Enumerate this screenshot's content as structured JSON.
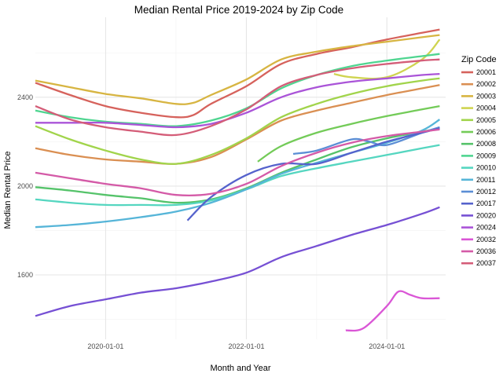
{
  "chart_data": {
    "type": "line",
    "title": "Median Rental Price 2019-2024 by Zip Code",
    "xlabel": "Month and Year",
    "ylabel": "Median Rental Price",
    "x_ticks": [
      "2020-01-01",
      "2022-01-01",
      "2024-01-01"
    ],
    "y_ticks": [
      1600,
      2000,
      2400
    ],
    "xlim": [
      "2019-01-01",
      "2024-11-01"
    ],
    "ylim": [
      1310,
      2760
    ],
    "grid": true,
    "legend_title": "Zip Code",
    "legend_position": "right",
    "series": [
      {
        "name": "20001",
        "color": "#D6625C",
        "points": [
          [
            "2019-01-01",
            2465
          ],
          [
            "2019-07-01",
            2410
          ],
          [
            "2020-01-01",
            2360
          ],
          [
            "2020-07-01",
            2330
          ],
          [
            "2021-01-01",
            2310
          ],
          [
            "2021-04-01",
            2320
          ],
          [
            "2021-07-01",
            2370
          ],
          [
            "2022-01-01",
            2450
          ],
          [
            "2022-07-01",
            2550
          ],
          [
            "2023-01-01",
            2595
          ],
          [
            "2023-07-01",
            2625
          ],
          [
            "2024-01-01",
            2660
          ],
          [
            "2024-07-01",
            2690
          ],
          [
            "2024-10-01",
            2705
          ]
        ]
      },
      {
        "name": "20002",
        "color": "#DA8F52",
        "points": [
          [
            "2019-01-01",
            2170
          ],
          [
            "2019-07-01",
            2140
          ],
          [
            "2020-01-01",
            2120
          ],
          [
            "2020-07-01",
            2110
          ],
          [
            "2021-01-01",
            2100
          ],
          [
            "2021-07-01",
            2130
          ],
          [
            "2022-01-01",
            2210
          ],
          [
            "2022-07-01",
            2295
          ],
          [
            "2023-01-01",
            2340
          ],
          [
            "2023-07-01",
            2375
          ],
          [
            "2024-01-01",
            2410
          ],
          [
            "2024-07-01",
            2440
          ],
          [
            "2024-10-01",
            2455
          ]
        ]
      },
      {
        "name": "20003",
        "color": "#D7B542",
        "points": [
          [
            "2019-01-01",
            2475
          ],
          [
            "2019-07-01",
            2445
          ],
          [
            "2020-01-01",
            2415
          ],
          [
            "2020-07-01",
            2395
          ],
          [
            "2021-01-01",
            2370
          ],
          [
            "2021-04-01",
            2375
          ],
          [
            "2021-07-01",
            2410
          ],
          [
            "2022-01-01",
            2480
          ],
          [
            "2022-07-01",
            2570
          ],
          [
            "2023-01-01",
            2605
          ],
          [
            "2023-07-01",
            2630
          ],
          [
            "2024-01-01",
            2650
          ],
          [
            "2024-07-01",
            2670
          ],
          [
            "2024-10-01",
            2680
          ]
        ]
      },
      {
        "name": "20004",
        "color": "#CFD450",
        "points": [
          [
            "2023-04-01",
            2505
          ],
          [
            "2023-07-01",
            2490
          ],
          [
            "2024-01-01",
            2490
          ],
          [
            "2024-07-01",
            2570
          ],
          [
            "2024-10-01",
            2660
          ]
        ]
      },
      {
        "name": "20005",
        "color": "#A1D44B",
        "points": [
          [
            "2019-01-01",
            2270
          ],
          [
            "2019-07-01",
            2210
          ],
          [
            "2020-01-01",
            2160
          ],
          [
            "2020-07-01",
            2120
          ],
          [
            "2021-01-01",
            2100
          ],
          [
            "2021-07-01",
            2140
          ],
          [
            "2022-01-01",
            2215
          ],
          [
            "2022-07-01",
            2310
          ],
          [
            "2023-01-01",
            2370
          ],
          [
            "2023-07-01",
            2415
          ],
          [
            "2024-01-01",
            2450
          ],
          [
            "2024-07-01",
            2475
          ],
          [
            "2024-10-01",
            2485
          ]
        ]
      },
      {
        "name": "20006",
        "color": "#73CB58",
        "points": [
          [
            "2022-03-01",
            2110
          ],
          [
            "2022-07-01",
            2180
          ],
          [
            "2023-01-01",
            2240
          ],
          [
            "2023-07-01",
            2280
          ],
          [
            "2024-01-01",
            2315
          ],
          [
            "2024-07-01",
            2345
          ],
          [
            "2024-10-01",
            2360
          ]
        ]
      },
      {
        "name": "20008",
        "color": "#55C36A",
        "points": [
          [
            "2019-01-01",
            1995
          ],
          [
            "2019-07-01",
            1980
          ],
          [
            "2020-01-01",
            1960
          ],
          [
            "2020-07-01",
            1945
          ],
          [
            "2021-01-01",
            1925
          ],
          [
            "2021-07-01",
            1940
          ],
          [
            "2022-01-01",
            1990
          ],
          [
            "2022-07-01",
            2060
          ],
          [
            "2023-01-01",
            2120
          ],
          [
            "2023-07-01",
            2175
          ],
          [
            "2024-01-01",
            2215
          ],
          [
            "2024-07-01",
            2245
          ],
          [
            "2024-10-01",
            2260
          ]
        ]
      },
      {
        "name": "20009",
        "color": "#4FD590",
        "points": [
          [
            "2019-01-01",
            2340
          ],
          [
            "2019-07-01",
            2310
          ],
          [
            "2020-01-01",
            2290
          ],
          [
            "2020-07-01",
            2280
          ],
          [
            "2021-01-01",
            2270
          ],
          [
            "2021-07-01",
            2295
          ],
          [
            "2022-01-01",
            2350
          ],
          [
            "2022-07-01",
            2440
          ],
          [
            "2023-01-01",
            2500
          ],
          [
            "2023-07-01",
            2540
          ],
          [
            "2024-01-01",
            2565
          ],
          [
            "2024-07-01",
            2585
          ],
          [
            "2024-10-01",
            2595
          ]
        ]
      },
      {
        "name": "20010",
        "color": "#55D6C0",
        "points": [
          [
            "2019-01-01",
            1940
          ],
          [
            "2019-07-01",
            1925
          ],
          [
            "2020-01-01",
            1915
          ],
          [
            "2020-07-01",
            1915
          ],
          [
            "2021-01-01",
            1915
          ],
          [
            "2021-07-01",
            1935
          ],
          [
            "2022-01-01",
            1985
          ],
          [
            "2022-07-01",
            2045
          ],
          [
            "2023-01-01",
            2080
          ],
          [
            "2023-07-01",
            2110
          ],
          [
            "2024-01-01",
            2140
          ],
          [
            "2024-07-01",
            2170
          ],
          [
            "2024-10-01",
            2185
          ]
        ]
      },
      {
        "name": "20011",
        "color": "#56B5D8",
        "points": [
          [
            "2019-01-01",
            1815
          ],
          [
            "2019-07-01",
            1825
          ],
          [
            "2020-01-01",
            1840
          ],
          [
            "2020-07-01",
            1860
          ],
          [
            "2021-01-01",
            1885
          ],
          [
            "2021-07-01",
            1925
          ],
          [
            "2022-01-01",
            1985
          ],
          [
            "2022-07-01",
            2055
          ],
          [
            "2023-01-01",
            2105
          ],
          [
            "2023-07-01",
            2150
          ],
          [
            "2024-01-01",
            2195
          ],
          [
            "2024-07-01",
            2250
          ],
          [
            "2024-10-01",
            2300
          ]
        ]
      },
      {
        "name": "20012",
        "color": "#5B8ED5",
        "points": [
          [
            "2022-09-01",
            2145
          ],
          [
            "2023-01-01",
            2160
          ],
          [
            "2023-07-01",
            2210
          ],
          [
            "2023-10-01",
            2200
          ],
          [
            "2024-01-01",
            2185
          ],
          [
            "2024-07-01",
            2240
          ],
          [
            "2024-10-01",
            2265
          ]
        ]
      },
      {
        "name": "20017",
        "color": "#5562CC",
        "points": [
          [
            "2021-03-01",
            1845
          ],
          [
            "2021-07-01",
            1950
          ],
          [
            "2022-01-01",
            2050
          ],
          [
            "2022-07-01",
            2100
          ],
          [
            "2023-01-01",
            2100
          ],
          [
            "2023-07-01",
            2150
          ],
          [
            "2024-01-01",
            2200
          ],
          [
            "2024-07-01",
            2240
          ],
          [
            "2024-10-01",
            2260
          ]
        ]
      },
      {
        "name": "20020",
        "color": "#7650D4",
        "points": [
          [
            "2019-01-01",
            1415
          ],
          [
            "2019-07-01",
            1460
          ],
          [
            "2020-01-01",
            1490
          ],
          [
            "2020-07-01",
            1520
          ],
          [
            "2021-01-01",
            1540
          ],
          [
            "2021-07-01",
            1570
          ],
          [
            "2022-01-01",
            1610
          ],
          [
            "2022-07-01",
            1680
          ],
          [
            "2023-01-01",
            1730
          ],
          [
            "2023-07-01",
            1780
          ],
          [
            "2024-01-01",
            1825
          ],
          [
            "2024-07-01",
            1875
          ],
          [
            "2024-10-01",
            1905
          ]
        ]
      },
      {
        "name": "20024",
        "color": "#AA54D8",
        "points": [
          [
            "2019-01-01",
            2285
          ],
          [
            "2019-07-01",
            2285
          ],
          [
            "2020-01-01",
            2285
          ],
          [
            "2020-07-01",
            2275
          ],
          [
            "2021-01-01",
            2265
          ],
          [
            "2021-07-01",
            2280
          ],
          [
            "2022-01-01",
            2330
          ],
          [
            "2022-07-01",
            2400
          ],
          [
            "2023-01-01",
            2445
          ],
          [
            "2023-07-01",
            2470
          ],
          [
            "2024-01-01",
            2485
          ],
          [
            "2024-07-01",
            2500
          ],
          [
            "2024-10-01",
            2505
          ]
        ]
      },
      {
        "name": "20032",
        "color": "#DA56D6",
        "points": [
          [
            "2023-06-01",
            1350
          ],
          [
            "2023-09-01",
            1360
          ],
          [
            "2024-01-01",
            1460
          ],
          [
            "2024-03-01",
            1525
          ],
          [
            "2024-05-01",
            1510
          ],
          [
            "2024-07-01",
            1495
          ],
          [
            "2024-10-01",
            1495
          ]
        ]
      },
      {
        "name": "20036",
        "color": "#D45AA7",
        "points": [
          [
            "2019-01-01",
            2060
          ],
          [
            "2019-07-01",
            2035
          ],
          [
            "2020-01-01",
            2010
          ],
          [
            "2020-07-01",
            1990
          ],
          [
            "2021-01-01",
            1960
          ],
          [
            "2021-07-01",
            1965
          ],
          [
            "2022-01-01",
            2010
          ],
          [
            "2022-07-01",
            2090
          ],
          [
            "2023-01-01",
            2150
          ],
          [
            "2023-07-01",
            2195
          ],
          [
            "2024-01-01",
            2225
          ],
          [
            "2024-07-01",
            2245
          ],
          [
            "2024-10-01",
            2255
          ]
        ]
      },
      {
        "name": "20037",
        "color": "#D45D78",
        "points": [
          [
            "2019-01-01",
            2360
          ],
          [
            "2019-07-01",
            2300
          ],
          [
            "2020-01-01",
            2265
          ],
          [
            "2020-07-01",
            2245
          ],
          [
            "2021-01-01",
            2230
          ],
          [
            "2021-07-01",
            2270
          ],
          [
            "2022-01-01",
            2345
          ],
          [
            "2022-07-01",
            2450
          ],
          [
            "2023-01-01",
            2500
          ],
          [
            "2023-07-01",
            2530
          ],
          [
            "2024-01-01",
            2550
          ],
          [
            "2024-07-01",
            2565
          ],
          [
            "2024-10-01",
            2570
          ]
        ]
      }
    ]
  }
}
